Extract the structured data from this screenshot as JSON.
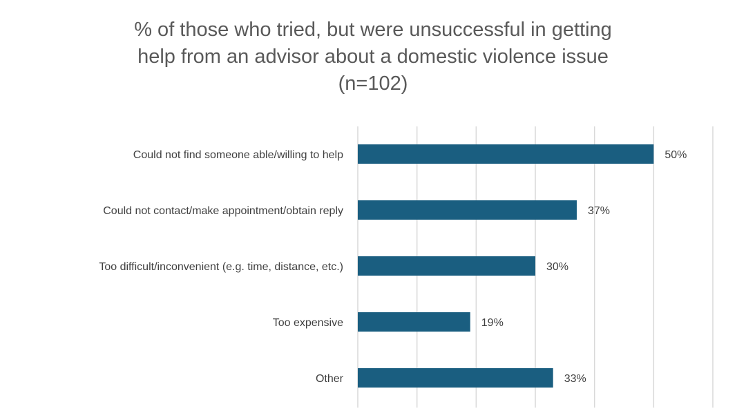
{
  "chart_data": {
    "type": "bar",
    "orientation": "horizontal",
    "title_lines": [
      "% of those who tried, but were unsuccessful in getting",
      "help from an advisor about a domestic violence issue",
      "(n=102)"
    ],
    "categories": [
      "Could not find someone able/willing to help",
      "Could not contact/make appointment/obtain reply",
      "Too difficult/inconvenient (e.g. time, distance, etc.)",
      "Too expensive",
      "Other"
    ],
    "values": [
      50,
      37,
      30,
      19,
      33
    ],
    "data_labels": [
      "50%",
      "37%",
      "30%",
      "19%",
      "33%"
    ],
    "xlim": [
      0,
      60
    ],
    "x_grid_step": 10,
    "grid": true,
    "legend": "none",
    "bar_color": "#1a5e80",
    "grid_color": "#d9d9d9"
  }
}
